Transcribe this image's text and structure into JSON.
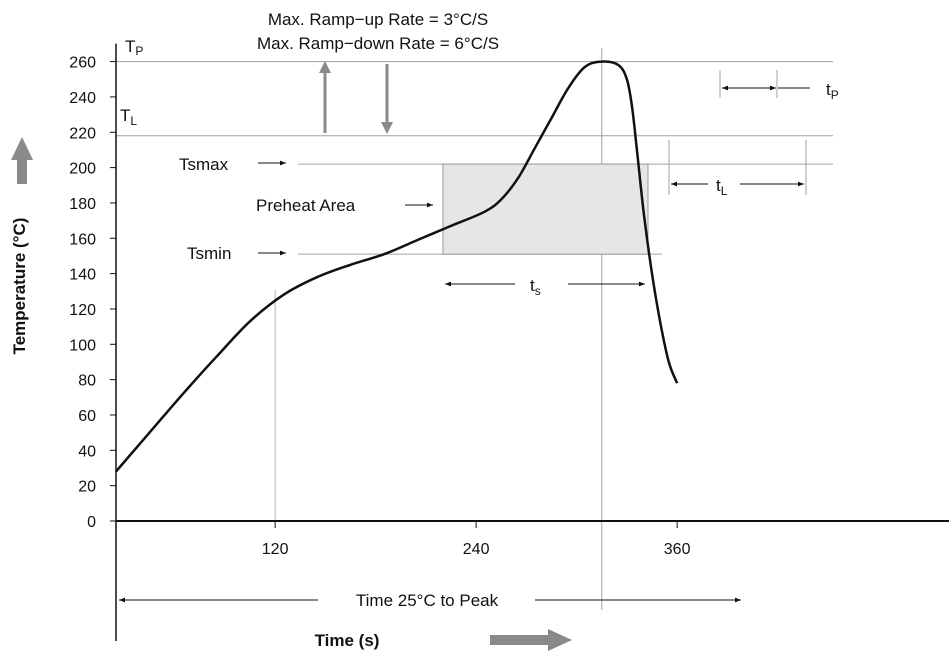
{
  "chart_data": {
    "type": "line",
    "title": "",
    "xlabel": "Time (s)",
    "ylabel": "Temperature (°C)",
    "xlim": [
      25,
      370
    ],
    "ylim": [
      0,
      260
    ],
    "x_ticks": [
      "120",
      "240",
      "360"
    ],
    "y_ticks": [
      "0",
      "20",
      "40",
      "60",
      "80",
      "100",
      "120",
      "140",
      "160",
      "180",
      "200",
      "220",
      "240",
      "260"
    ],
    "grid": false,
    "series": [
      {
        "name": "",
        "x": [
          25,
          45,
          65,
          85,
          105,
          125,
          145,
          165,
          185,
          205,
          225,
          245,
          255,
          265,
          275,
          285,
          295,
          305,
          315,
          325,
          330,
          333,
          336,
          340,
          345,
          350,
          355,
          360
        ],
        "y": [
          28,
          50,
          72,
          93,
          113,
          128,
          138,
          145,
          151,
          159,
          167,
          175,
          182,
          194,
          211,
          228,
          245,
          257,
          260,
          258,
          250,
          235,
          210,
          175,
          140,
          112,
          90,
          78
        ]
      }
    ],
    "levels": {
      "tp": 260,
      "tl": 218,
      "tsmax": 202,
      "tsmin": 151
    },
    "annotations": {
      "ramp_up": "Max. Ramp−up Rate = 3°C/S",
      "ramp_down": "Max. Ramp−down Rate = 6°C/S",
      "tp_label": "T",
      "tp_sub": "P",
      "tl_label": "T",
      "tl_sub": "L",
      "tsmax": "Tsmax",
      "tsmin": "Tsmin",
      "preheat": "Preheat Area",
      "ts_label": "t",
      "ts_sub": "s",
      "tl_time_label": "t",
      "tl_time_sub": "L",
      "tp_time_label": "t",
      "tp_time_sub": "P",
      "time_to_peak": "Time 25°C to Peak"
    },
    "colors": {
      "curve": "#111111",
      "reference_lines": "#a0a0a0",
      "preheat_fill": "#e6e6e6",
      "arrow_gray": "#8a8a8a"
    }
  }
}
